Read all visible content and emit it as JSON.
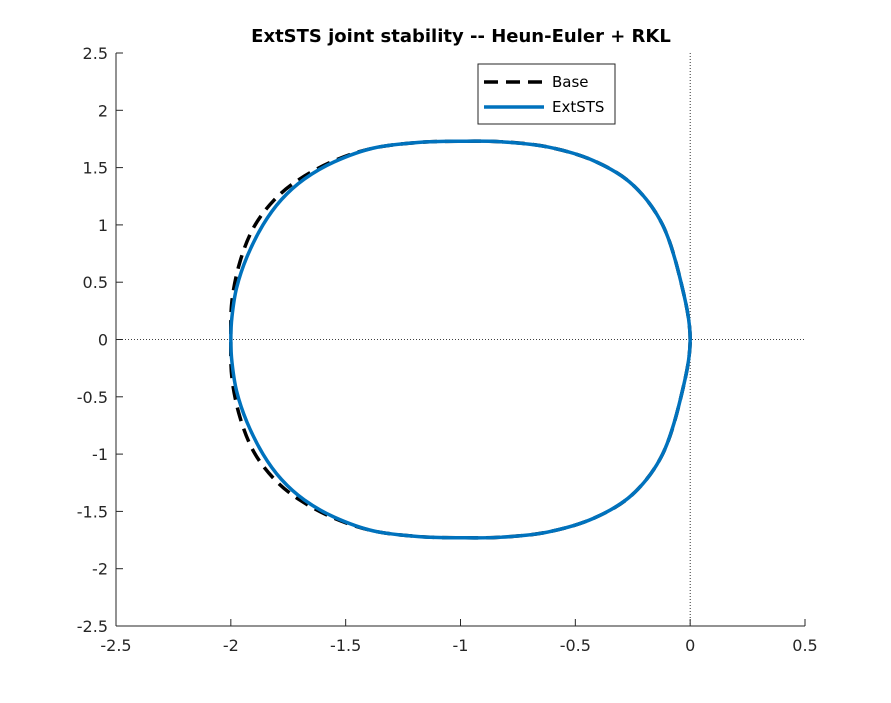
{
  "chart_data": {
    "type": "line",
    "title": "ExtSTS joint stability -- Heun-Euler + RKL",
    "xlabel": "",
    "ylabel": "",
    "xlim": [
      -2.5,
      0.5
    ],
    "ylim": [
      -2.5,
      2.5
    ],
    "xticks": [
      -2.5,
      -2,
      -1.5,
      -1,
      -0.5,
      0,
      0.5
    ],
    "xtick_labels": [
      "-2.5",
      "-2",
      "-1.5",
      "-1",
      "-0.5",
      "0",
      "0.5"
    ],
    "yticks": [
      -2.5,
      -2,
      -1.5,
      -1,
      -0.5,
      0,
      0.5,
      1,
      1.5,
      2,
      2.5
    ],
    "ytick_labels": [
      "-2.5",
      "-2",
      "-1.5",
      "-1",
      "-0.5",
      "0",
      "0.5",
      "1",
      "1.5",
      "2",
      "2.5"
    ],
    "grid": false,
    "reference_lines": {
      "x": 0,
      "y": 0,
      "style": "dotted"
    },
    "legend_position": "top-right",
    "series": [
      {
        "name": "Base",
        "style": "dashed",
        "color": "#000000",
        "x": [
          0,
          -0.04,
          -0.12,
          -0.25,
          -0.42,
          -0.62,
          -0.82,
          -1.0,
          -1.18,
          -1.38,
          -1.55,
          -1.7,
          -1.81,
          -1.9,
          -1.96,
          -1.995,
          -2.0,
          -1.995,
          -1.96,
          -1.9,
          -1.81,
          -1.7,
          -1.55,
          -1.38,
          -1.18,
          -1.0,
          -0.82,
          -0.62,
          -0.42,
          -0.25,
          -0.12,
          -0.04,
          0
        ],
        "y": [
          0,
          0.5,
          1.0,
          1.35,
          1.56,
          1.68,
          1.725,
          1.73,
          1.72,
          1.67,
          1.56,
          1.4,
          1.22,
          0.98,
          0.68,
          0.34,
          0,
          -0.34,
          -0.68,
          -0.98,
          -1.22,
          -1.4,
          -1.56,
          -1.67,
          -1.72,
          -1.73,
          -1.725,
          -1.68,
          -1.56,
          -1.35,
          -1.0,
          -0.5,
          0
        ]
      },
      {
        "name": "ExtSTS",
        "style": "solid",
        "color": "#0072BD",
        "x": [
          0,
          -0.04,
          -0.12,
          -0.25,
          -0.42,
          -0.62,
          -0.82,
          -1.0,
          -1.18,
          -1.38,
          -1.55,
          -1.68,
          -1.78,
          -1.86,
          -1.93,
          -1.975,
          -1.995,
          -2.0,
          -1.995,
          -1.975,
          -1.93,
          -1.86,
          -1.78,
          -1.68,
          -1.55,
          -1.38,
          -1.18,
          -1.0,
          -0.82,
          -0.62,
          -0.42,
          -0.25,
          -0.12,
          -0.04,
          0
        ],
        "y": [
          0,
          0.5,
          1.0,
          1.35,
          1.56,
          1.68,
          1.725,
          1.73,
          1.72,
          1.67,
          1.55,
          1.4,
          1.22,
          1.0,
          0.72,
          0.45,
          0.2,
          0,
          -0.2,
          -0.45,
          -0.72,
          -1.0,
          -1.22,
          -1.4,
          -1.55,
          -1.67,
          -1.72,
          -1.73,
          -1.725,
          -1.68,
          -1.56,
          -1.35,
          -1.0,
          -0.5,
          0
        ]
      }
    ]
  }
}
